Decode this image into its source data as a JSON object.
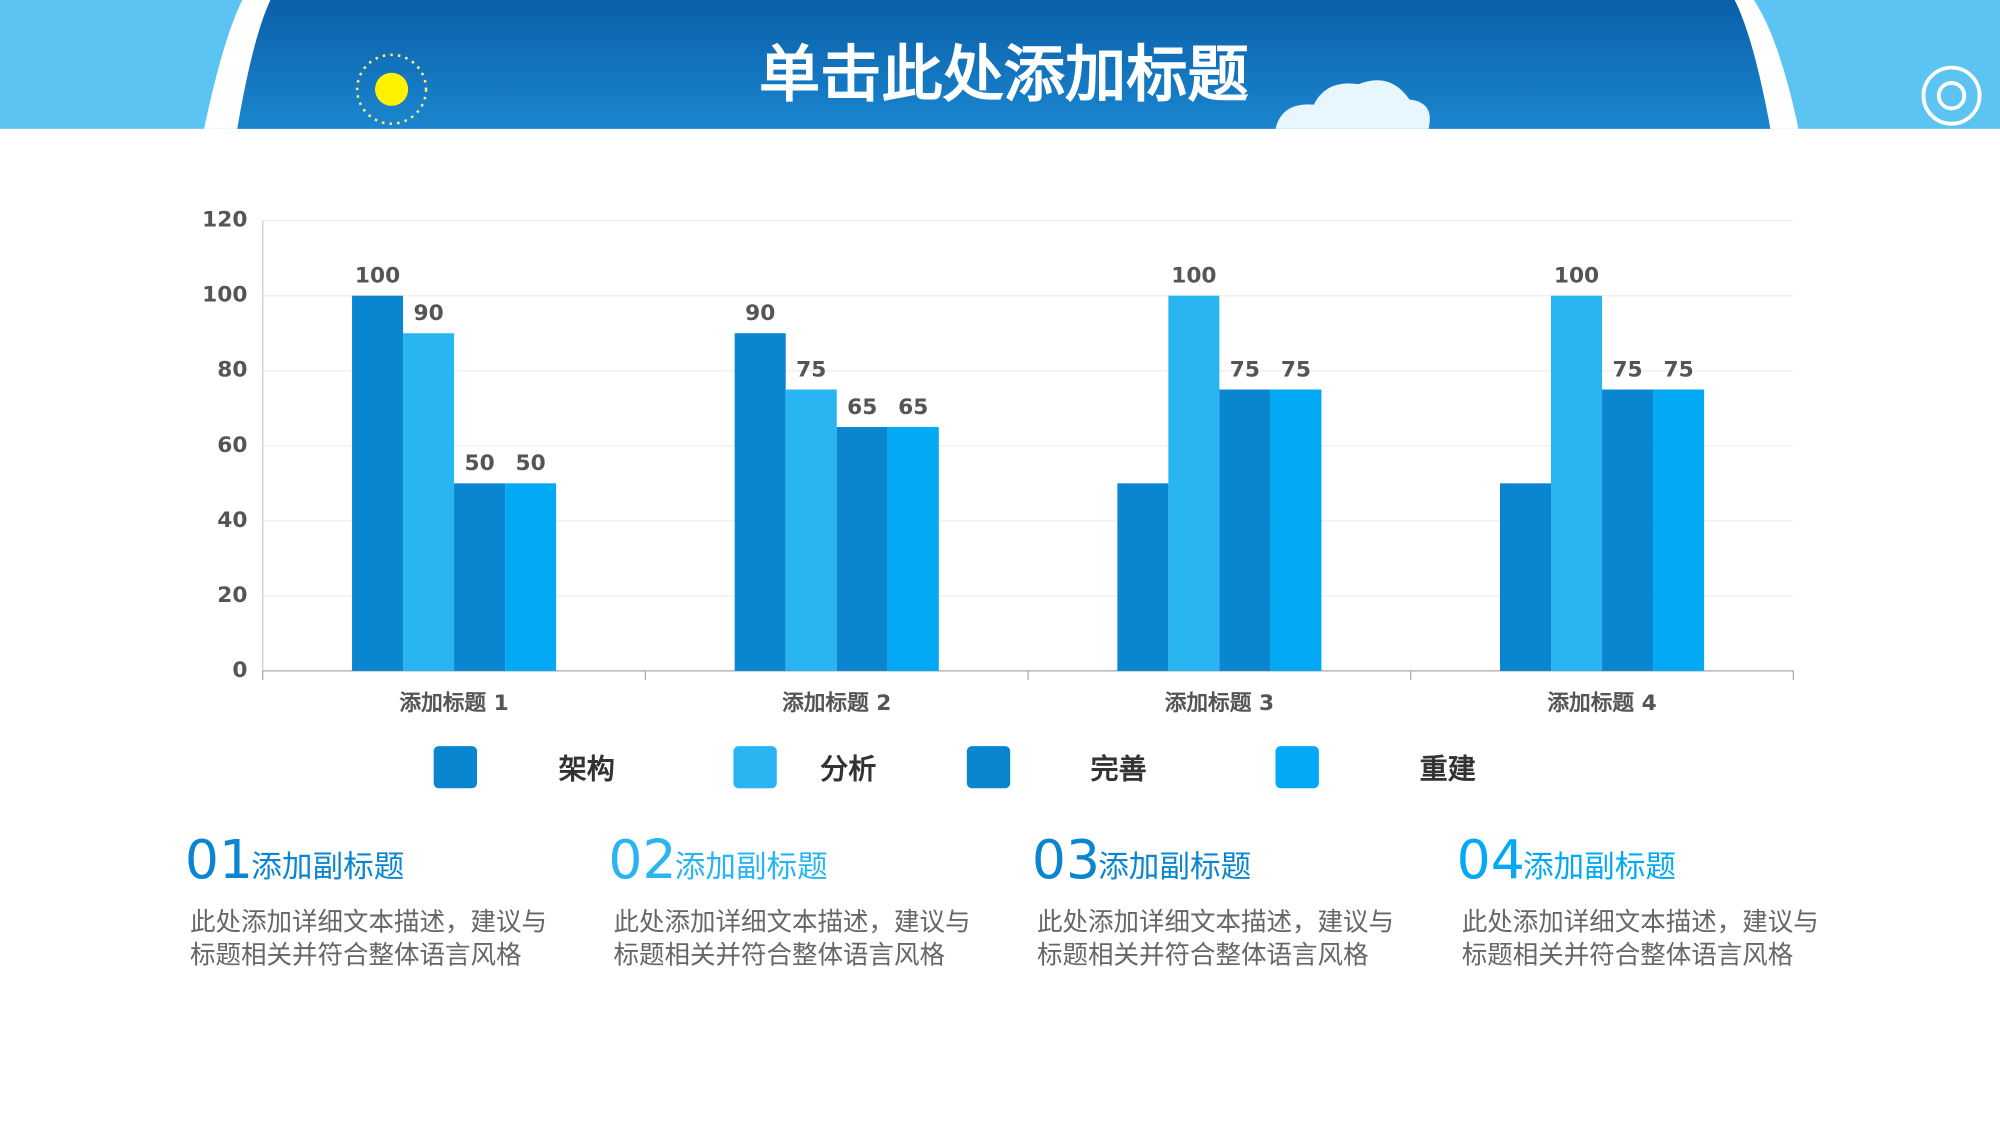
{
  "header": {
    "title": "单击此处添加标题"
  },
  "chart_data": {
    "type": "bar",
    "categories": [
      "添加标题 1",
      "添加标题 2",
      "添加标题 3",
      "添加标题 4"
    ],
    "series": [
      {
        "name": "架构",
        "color": "#0a86d0",
        "values": [
          100,
          90,
          50,
          50
        ],
        "value_labels": [
          100,
          90,
          null,
          null
        ]
      },
      {
        "name": "分析",
        "color": "#29b4f2",
        "values": [
          90,
          75,
          100,
          100
        ],
        "value_labels": [
          90,
          75,
          100,
          100
        ]
      },
      {
        "name": "完善",
        "color": "#0a86d0",
        "values": [
          50,
          65,
          75,
          75
        ],
        "value_labels": [
          50,
          65,
          75,
          75
        ]
      },
      {
        "name": "重建",
        "color": "#03a9f4",
        "values": [
          50,
          65,
          75,
          75
        ],
        "value_labels": [
          50,
          65,
          75,
          75
        ]
      }
    ],
    "ylim": [
      0,
      120
    ],
    "yticks": [
      0,
      20,
      40,
      60,
      80,
      100,
      120
    ],
    "grid": true
  },
  "items": [
    {
      "number": "01",
      "color": "#0a86d0",
      "subtitle": "添加副标题",
      "lines": [
        "此处添加详细文本描述，建议与",
        "标题相关并符合整体语言风格"
      ]
    },
    {
      "number": "02",
      "color": "#29b4f2",
      "subtitle": "添加副标题",
      "lines": [
        "此处添加详细文本描述，建议与",
        "标题相关并符合整体语言风格"
      ]
    },
    {
      "number": "03",
      "color": "#0a86d0",
      "subtitle": "添加副标题",
      "lines": [
        "此处添加详细文本描述，建议与",
        "标题相关并符合整体语言风格"
      ]
    },
    {
      "number": "04",
      "color": "#03a9f4",
      "subtitle": "添加副标题",
      "lines": [
        "此处添加详细文本描述，建议与",
        "标题相关并符合整体语言风格"
      ]
    }
  ]
}
